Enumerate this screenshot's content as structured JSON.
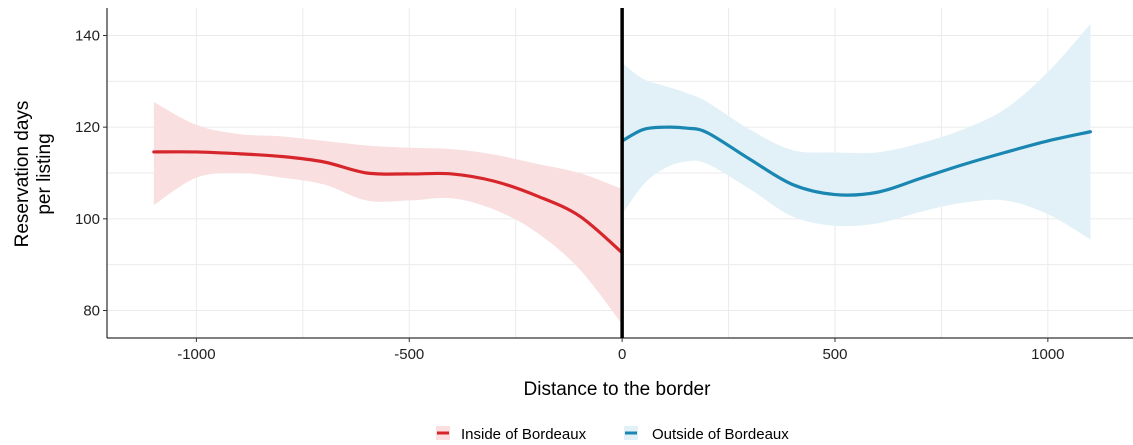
{
  "chart_data": {
    "type": "line",
    "title": "",
    "xlabel": "Distance to the border",
    "ylabel_lines": [
      "Reservation days",
      "per listing"
    ],
    "xlim": [
      -1210,
      1200
    ],
    "ylim": [
      74,
      146
    ],
    "x_ticks": [
      -1000,
      -500,
      0,
      500,
      1000
    ],
    "x_tick_labels": [
      "-1000",
      "-500",
      "0",
      "500",
      "1000"
    ],
    "y_ticks": [
      80,
      100,
      120,
      140
    ],
    "y_tick_labels": [
      "80",
      "100",
      "120",
      "140"
    ],
    "grid": true,
    "vertical_line_x": 0,
    "legend_position": "bottom",
    "series": [
      {
        "name": "Inside of Bordeaux",
        "color": "#d7262b",
        "band_color": "#f9dfe0",
        "x": [
          -1100,
          -1000,
          -900,
          -800,
          -700,
          -600,
          -500,
          -400,
          -300,
          -200,
          -100,
          0
        ],
        "y": [
          114.6,
          114.6,
          114.2,
          113.6,
          112.4,
          110.0,
          109.8,
          109.8,
          108.2,
          105.0,
          100.6,
          92.6
        ],
        "lower": [
          103.0,
          109.0,
          110.0,
          109.0,
          107.5,
          104.0,
          104.0,
          104.5,
          102.0,
          97.0,
          89.0,
          77.0
        ],
        "upper": [
          125.5,
          120.5,
          118.5,
          118.0,
          117.0,
          116.0,
          115.5,
          115.2,
          114.0,
          112.0,
          110.0,
          106.5
        ]
      },
      {
        "name": "Outside of Bordeaux",
        "color": "#1a86b2",
        "band_color": "#e2f1f7",
        "x": [
          0,
          50,
          100,
          150,
          200,
          300,
          400,
          500,
          600,
          700,
          800,
          900,
          1000,
          1100
        ],
        "y": [
          117.0,
          119.5,
          120.0,
          119.8,
          118.8,
          113.0,
          107.5,
          105.3,
          105.8,
          108.8,
          111.8,
          114.5,
          117.0,
          119.0
        ],
        "lower": [
          101.0,
          107.5,
          111.0,
          112.5,
          112.0,
          106.5,
          100.5,
          98.5,
          99.0,
          101.5,
          103.5,
          104.0,
          101.0,
          95.5
        ],
        "upper": [
          134.0,
          130.5,
          129.0,
          127.5,
          125.5,
          119.5,
          115.0,
          114.5,
          114.5,
          116.5,
          119.5,
          124.0,
          132.0,
          142.5
        ]
      }
    ]
  }
}
